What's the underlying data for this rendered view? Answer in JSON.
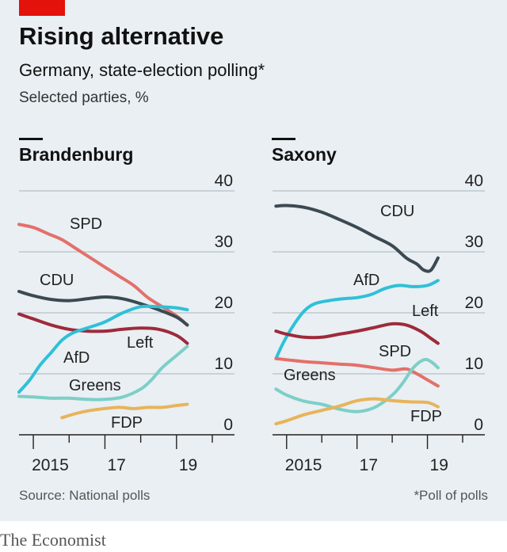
{
  "title": "Rising alternative",
  "subtitle": "Germany, state-election polling*",
  "units": "Selected parties, %",
  "source": "Source: National polls",
  "note": "*Poll of polls",
  "brand": "The Economist",
  "accent_color": "#e3120b",
  "chart_data": [
    {
      "type": "line",
      "title": "Brandenburg",
      "ylim": [
        0,
        40
      ],
      "yticks": [
        0,
        10,
        20,
        30,
        40
      ],
      "xlim": [
        2014.6,
        2020.0
      ],
      "xticks": [
        2015,
        2017,
        2019
      ],
      "xtick_labels": [
        "2015",
        "17",
        "19"
      ],
      "grid": true,
      "series": [
        {
          "name": "SPD",
          "color": "#e3706a",
          "x": [
            2014.6,
            2015.0,
            2015.4,
            2015.8,
            2016.2,
            2016.6,
            2017.0,
            2017.4,
            2017.8,
            2018.2,
            2018.6,
            2019.0,
            2019.3
          ],
          "y": [
            34.5,
            34.0,
            33.0,
            32.0,
            30.5,
            29.0,
            27.5,
            26.0,
            24.5,
            22.5,
            21.0,
            19.5,
            18.0
          ]
        },
        {
          "name": "CDU",
          "color": "#3b4a52",
          "x": [
            2014.6,
            2015.0,
            2015.5,
            2016.0,
            2016.5,
            2017.0,
            2017.5,
            2018.0,
            2018.5,
            2019.0,
            2019.3
          ],
          "y": [
            23.5,
            22.8,
            22.2,
            22.0,
            22.3,
            22.6,
            22.3,
            21.5,
            20.5,
            19.3,
            18.0
          ]
        },
        {
          "name": "Left",
          "color": "#9e2a3a",
          "x": [
            2014.6,
            2015.0,
            2015.5,
            2016.0,
            2016.5,
            2017.0,
            2017.5,
            2018.0,
            2018.5,
            2019.0,
            2019.3
          ],
          "y": [
            19.8,
            19.0,
            18.0,
            17.3,
            17.0,
            17.0,
            17.3,
            17.5,
            17.3,
            16.3,
            15.0
          ]
        },
        {
          "name": "AfD",
          "color": "#2fc0d8",
          "x": [
            2014.6,
            2014.9,
            2015.2,
            2015.5,
            2015.8,
            2016.1,
            2016.5,
            2017.0,
            2017.5,
            2018.0,
            2018.5,
            2019.0,
            2019.3
          ],
          "y": [
            7.0,
            9.0,
            11.5,
            13.5,
            15.5,
            16.7,
            17.5,
            18.5,
            20.0,
            21.0,
            21.0,
            20.8,
            20.5
          ]
        },
        {
          "name": "Greens",
          "color": "#7ccfc7",
          "x": [
            2014.6,
            2015.0,
            2015.5,
            2016.0,
            2016.5,
            2017.0,
            2017.5,
            2018.0,
            2018.3,
            2018.6,
            2019.0,
            2019.3
          ],
          "y": [
            6.3,
            6.2,
            6.0,
            6.0,
            5.8,
            5.8,
            6.2,
            7.5,
            9.0,
            11.0,
            13.0,
            14.5
          ]
        },
        {
          "name": "FDP",
          "color": "#e8b45a",
          "x": [
            2015.8,
            2016.2,
            2016.6,
            2017.0,
            2017.4,
            2017.8,
            2018.2,
            2018.6,
            2019.0,
            2019.3
          ],
          "y": [
            2.8,
            3.5,
            4.0,
            4.3,
            4.5,
            4.3,
            4.5,
            4.5,
            4.8,
            5.0
          ]
        }
      ]
    },
    {
      "type": "line",
      "title": "Saxony",
      "ylim": [
        0,
        40
      ],
      "yticks": [
        0,
        10,
        20,
        30,
        40
      ],
      "xlim": [
        2014.6,
        2020.0
      ],
      "xticks": [
        2015,
        2017,
        2019
      ],
      "xtick_labels": [
        "2015",
        "17",
        "19"
      ],
      "grid": true,
      "series": [
        {
          "name": "CDU",
          "color": "#3b4a52",
          "x": [
            2014.7,
            2015.0,
            2015.5,
            2016.0,
            2016.5,
            2017.0,
            2017.5,
            2018.0,
            2018.4,
            2018.7,
            2018.9,
            2019.1,
            2019.3
          ],
          "y": [
            37.5,
            37.6,
            37.3,
            36.5,
            35.3,
            34.0,
            32.5,
            31.0,
            29.0,
            28.0,
            27.0,
            27.0,
            29.0
          ]
        },
        {
          "name": "AfD",
          "color": "#2fc0d8",
          "x": [
            2014.7,
            2014.9,
            2015.2,
            2015.5,
            2015.8,
            2016.2,
            2016.6,
            2017.0,
            2017.4,
            2017.8,
            2018.2,
            2018.6,
            2019.0,
            2019.3
          ],
          "y": [
            12.5,
            15.0,
            18.0,
            20.3,
            21.5,
            22.0,
            22.3,
            22.5,
            23.0,
            24.0,
            24.5,
            24.3,
            24.5,
            25.3
          ]
        },
        {
          "name": "Left",
          "color": "#9e2a3a",
          "x": [
            2014.7,
            2015.0,
            2015.5,
            2016.0,
            2016.5,
            2017.0,
            2017.5,
            2018.0,
            2018.4,
            2018.8,
            2019.1,
            2019.3
          ],
          "y": [
            17.0,
            16.5,
            16.0,
            16.0,
            16.5,
            17.0,
            17.6,
            18.2,
            18.0,
            17.0,
            15.8,
            15.0
          ]
        },
        {
          "name": "SPD",
          "color": "#e3706a",
          "x": [
            2014.7,
            2015.0,
            2015.5,
            2016.0,
            2016.5,
            2017.0,
            2017.5,
            2018.0,
            2018.4,
            2018.7,
            2019.0,
            2019.3
          ],
          "y": [
            12.5,
            12.3,
            12.0,
            11.8,
            11.6,
            11.4,
            11.0,
            10.6,
            10.8,
            10.0,
            9.0,
            8.0
          ]
        },
        {
          "name": "Greens",
          "color": "#7ccfc7",
          "x": [
            2014.7,
            2015.0,
            2015.5,
            2016.0,
            2016.5,
            2017.0,
            2017.5,
            2018.0,
            2018.3,
            2018.6,
            2018.9,
            2019.1,
            2019.3
          ],
          "y": [
            7.5,
            6.5,
            5.5,
            5.0,
            4.2,
            3.8,
            4.5,
            6.5,
            8.5,
            11.0,
            12.3,
            12.0,
            11.0
          ]
        },
        {
          "name": "FDP",
          "color": "#e8b45a",
          "x": [
            2014.7,
            2015.0,
            2015.5,
            2016.0,
            2016.5,
            2017.0,
            2017.5,
            2018.0,
            2018.5,
            2019.0,
            2019.3
          ],
          "y": [
            1.8,
            2.3,
            3.3,
            4.0,
            4.7,
            5.6,
            5.9,
            5.6,
            5.4,
            5.3,
            4.6
          ]
        }
      ]
    }
  ]
}
